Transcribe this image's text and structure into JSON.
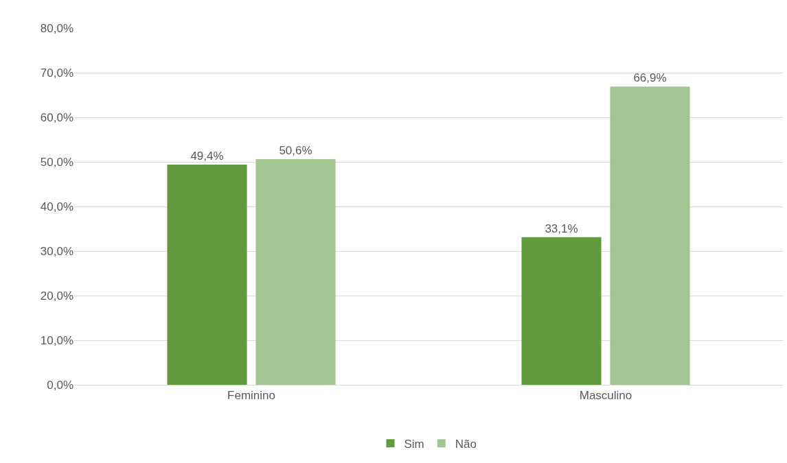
{
  "chart_data": {
    "type": "bar",
    "categories": [
      "Feminino",
      "Masculino"
    ],
    "series": [
      {
        "name": "Sim",
        "color": "#629b3e",
        "values": [
          49.4,
          33.1
        ],
        "value_labels": [
          "49,4%",
          "33,1%"
        ]
      },
      {
        "name": "Não",
        "color": "#a2c591",
        "values": [
          50.6,
          66.9
        ],
        "value_labels": [
          "50,6%",
          "66,9%"
        ]
      }
    ],
    "ylim": [
      0,
      80
    ],
    "yticks": [
      {
        "value": 0,
        "label": "0,0%"
      },
      {
        "value": 10,
        "label": "10,0%"
      },
      {
        "value": 20,
        "label": "20,0%"
      },
      {
        "value": 30,
        "label": "30,0%"
      },
      {
        "value": 40,
        "label": "40,0%"
      },
      {
        "value": 50,
        "label": "50,0%"
      },
      {
        "value": 60,
        "label": "60,0%"
      },
      {
        "value": 70,
        "label": "70,0%"
      },
      {
        "value": 80,
        "label": "80,0%"
      }
    ],
    "grid": "y",
    "legend": "bottom"
  }
}
